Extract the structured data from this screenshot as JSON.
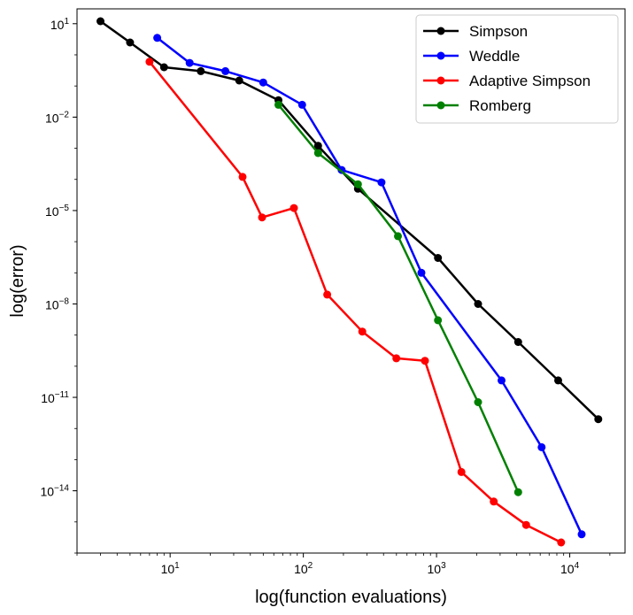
{
  "chart_data": {
    "type": "line",
    "title": "",
    "xlabel": "log(function evaluations)",
    "ylabel": "log(error)",
    "xscale": "log",
    "yscale": "log",
    "xlim": [
      2.0,
      26000
    ],
    "ylim": [
      1e-16,
      30.0
    ],
    "grid": false,
    "legend_position": "top-right",
    "x_ticks": [
      {
        "base": "10",
        "exp": "1",
        "value": 10
      },
      {
        "base": "10",
        "exp": "2",
        "value": 100
      },
      {
        "base": "10",
        "exp": "3",
        "value": 1000
      },
      {
        "base": "10",
        "exp": "4",
        "value": 10000
      }
    ],
    "y_ticks": [
      {
        "base": "10",
        "exp": "1",
        "value": 10.0
      },
      {
        "base": "10",
        "exp": "−2",
        "value": 0.01
      },
      {
        "base": "10",
        "exp": "−5",
        "value": 1e-05
      },
      {
        "base": "10",
        "exp": "−8",
        "value": 1e-08
      },
      {
        "base": "10",
        "exp": "−11",
        "value": 1e-11
      },
      {
        "base": "10",
        "exp": "−14",
        "value": 1e-14
      }
    ],
    "series": [
      {
        "name": "Simpson",
        "color": "#000000",
        "x": [
          3,
          5,
          9,
          17,
          33,
          65,
          129,
          257,
          1025,
          2049,
          4097,
          8193,
          16385
        ],
        "y": [
          12,
          2.5,
          0.4,
          0.3,
          0.15,
          0.035,
          0.0012,
          5e-05,
          3e-07,
          1e-08,
          6e-10,
          3.5e-11,
          2e-12
        ]
      },
      {
        "name": "Weddle",
        "color": "#0000ff",
        "x": [
          8,
          14,
          26,
          50,
          98,
          194,
          386,
          770,
          3074,
          6146,
          12290
        ],
        "y": [
          3.5,
          0.55,
          0.3,
          0.13,
          0.025,
          0.0002,
          8e-05,
          1e-07,
          3.5e-11,
          2.5e-13,
          4e-16
        ]
      },
      {
        "name": "Adaptive Simpson",
        "color": "#ff0000",
        "x": [
          7,
          35,
          49,
          85,
          151,
          277,
          499,
          819,
          1537,
          2689,
          4709,
          8613
        ],
        "y": [
          0.6,
          0.00012,
          6e-06,
          1.2e-05,
          2e-08,
          1.3e-09,
          1.8e-10,
          1.5e-10,
          4e-14,
          4.5e-15,
          8e-16,
          2.2e-16
        ]
      },
      {
        "name": "Romberg",
        "color": "#008000",
        "x": [
          65,
          129,
          257,
          513,
          1025,
          2049,
          4097
        ],
        "y": [
          0.025,
          0.0007,
          7e-05,
          1.5e-06,
          3e-09,
          7e-12,
          9e-15
        ]
      }
    ]
  }
}
